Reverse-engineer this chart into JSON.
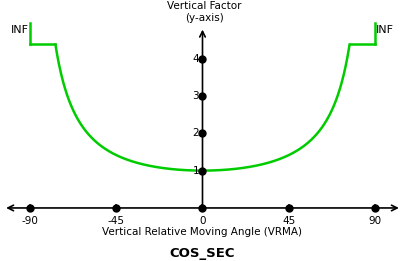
{
  "title": "COS_SEC",
  "ylabel": "Vertical Factor\n(y-axis)",
  "xlabel": "Vertical Relative Moving Angle (VRMA)",
  "xticks": [
    -90,
    -45,
    0,
    45,
    90
  ],
  "yticks": [
    1,
    2,
    3,
    4
  ],
  "curve_color": "#00cc00",
  "curve_linewidth": 1.8,
  "background_color": "#ffffff",
  "inf_label_left": "INF",
  "inf_label_right": "INF",
  "axis_color": "#000000",
  "dot_color": "#000000",
  "dot_size": 5,
  "xaxis_y": 0.0,
  "yaxis_x": 0.0,
  "display_ymax": 4.4,
  "xlim": [
    -105,
    105
  ],
  "ylim": [
    -0.55,
    5.0
  ]
}
